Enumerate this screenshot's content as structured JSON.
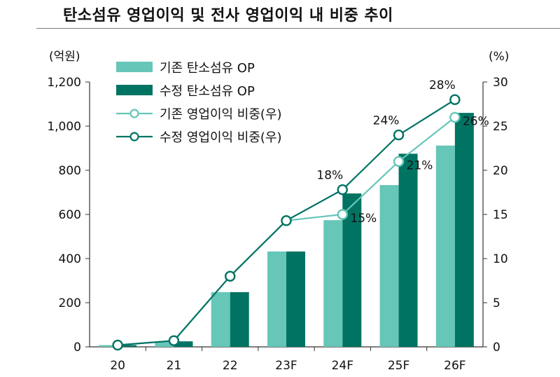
{
  "title": "탄소섬유 영업이익 및 전사 영업이익 내 비중 추이",
  "chart_data": {
    "type": "bar",
    "categories": [
      "20",
      "21",
      "22",
      "23F",
      "24F",
      "25F",
      "26F"
    ],
    "y_left": {
      "unit": "(억원)",
      "range": [
        0,
        1200
      ],
      "ticks": [
        "0",
        "200",
        "400",
        "600",
        "800",
        "1,000",
        "1,200"
      ]
    },
    "y_right": {
      "unit": "(%)",
      "range": [
        0,
        30
      ],
      "ticks": [
        "0",
        "5",
        "10",
        "15",
        "20",
        "25",
        "30"
      ]
    },
    "series": [
      {
        "name": "기존 탄소섬유 OP",
        "kind": "bar",
        "axis": "left",
        "color": "#66C6B8",
        "values": [
          8,
          25,
          248,
          432,
          574,
          733,
          912
        ]
      },
      {
        "name": "수정 탄소섬유 OP",
        "kind": "bar",
        "axis": "left",
        "color": "#007363",
        "values": [
          8,
          25,
          248,
          432,
          695,
          875,
          1060
        ]
      },
      {
        "name": "기존 영업이익 비중(우)",
        "kind": "line",
        "axis": "right",
        "color": "#66C6B8",
        "values": [
          0.2,
          0.7,
          8.0,
          14.3,
          15.0,
          21.0,
          26.0
        ],
        "labels": [
          null,
          null,
          null,
          null,
          "15%",
          "21%",
          "26%"
        ]
      },
      {
        "name": "수정 영업이익 비중(우)",
        "kind": "line",
        "axis": "right",
        "color": "#007363",
        "values": [
          0.2,
          0.7,
          8.0,
          14.3,
          17.8,
          24.0,
          28.0
        ],
        "labels": [
          null,
          null,
          null,
          null,
          "18%",
          "24%",
          "28%"
        ]
      }
    ],
    "legend_position": "top-left",
    "grid": false
  }
}
